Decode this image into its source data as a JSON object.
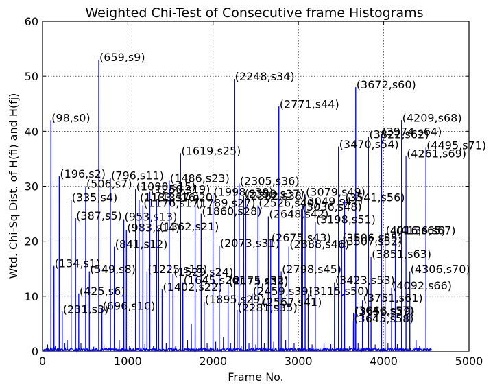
{
  "chart_data": {
    "type": "line",
    "title": "Weighted Chi-Test of Consecutive frame Histograms",
    "xlabel": "Frame No.",
    "ylabel": "Wtd. Chi-Sq Dist. of H(fi) and H(fj)",
    "xlim": [
      0,
      5000
    ],
    "ylim": [
      0,
      60
    ],
    "xticks": [
      0,
      1000,
      2000,
      3000,
      4000,
      5000
    ],
    "yticks": [
      0,
      10,
      20,
      30,
      40,
      50,
      60
    ],
    "grid": true,
    "series_color": "#0000ff",
    "n_frames": 4560,
    "peaks": [
      {
        "x": 98,
        "y": 42,
        "label": "(98,s0)"
      },
      {
        "x": 134,
        "y": 15.5,
        "label": "(134,s1)"
      },
      {
        "x": 196,
        "y": 31.8,
        "label": "(196,s2)"
      },
      {
        "x": 231,
        "y": 7.2,
        "label": "(231,s3)"
      },
      {
        "x": 335,
        "y": 27.5,
        "label": "(335,s4)"
      },
      {
        "x": 387,
        "y": 24.2,
        "label": "(387,s5)"
      },
      {
        "x": 425,
        "y": 10.5,
        "label": "(425,s6)"
      },
      {
        "x": 506,
        "y": 30,
        "label": "(506,s7)"
      },
      {
        "x": 549,
        "y": 14.5,
        "label": "(549,s8)"
      },
      {
        "x": 659,
        "y": 53,
        "label": "(659,s9)"
      },
      {
        "x": 696,
        "y": 7.8,
        "label": "(696,s10)"
      },
      {
        "x": 796,
        "y": 31.5,
        "label": "(796,s11)"
      },
      {
        "x": 841,
        "y": 19,
        "label": "(841,s12)"
      },
      {
        "x": 953,
        "y": 24,
        "label": "(953,s13)"
      },
      {
        "x": 983,
        "y": 22,
        "label": "(983,s14)"
      },
      {
        "x": 1090,
        "y": 29.5,
        "label": "(1090,s15)"
      },
      {
        "x": 1133,
        "y": 27.5,
        "label": "(1133,s16)"
      },
      {
        "x": 1176,
        "y": 26.5,
        "label": "(1176,s17)"
      },
      {
        "x": 1225,
        "y": 14.5,
        "label": "(1225,s18)"
      },
      {
        "x": 1258,
        "y": 29,
        "label": "(1258,s19)"
      },
      {
        "x": 1337,
        "y": 27.5,
        "label": "(1337,s20)"
      },
      {
        "x": 1362,
        "y": 22.2,
        "label": "(1362,s21)"
      },
      {
        "x": 1402,
        "y": 11.2,
        "label": "(1402,s22)"
      },
      {
        "x": 1486,
        "y": 31,
        "label": "(1486,s23)"
      },
      {
        "x": 1529,
        "y": 14,
        "label": "(1529,s24)"
      },
      {
        "x": 1619,
        "y": 36,
        "label": "(1619,s25)"
      },
      {
        "x": 1645,
        "y": 12.5,
        "label": "(1645,s26)"
      },
      {
        "x": 1789,
        "y": 26.5,
        "label": "(1789,s27)"
      },
      {
        "x": 1860,
        "y": 25,
        "label": "(1860,s28)"
      },
      {
        "x": 1895,
        "y": 9,
        "label": "(1895,s29)"
      },
      {
        "x": 1998,
        "y": 28.5,
        "label": "(1998,s30)"
      },
      {
        "x": 2073,
        "y": 19.2,
        "label": "(2073,s31)"
      },
      {
        "x": 2175,
        "y": 12.5,
        "label": "(2175,s32)"
      },
      {
        "x": 2175,
        "y": 12.2,
        "label": "(2175,s33)"
      },
      {
        "x": 2248,
        "y": 49.5,
        "label": "(2248,s34)"
      },
      {
        "x": 2281,
        "y": 7.5,
        "label": "(2281,s35)"
      },
      {
        "x": 2305,
        "y": 30.5,
        "label": "(2305,s36)"
      },
      {
        "x": 2359,
        "y": 28.2,
        "label": "(2359,s37)"
      },
      {
        "x": 2382,
        "y": 27.8,
        "label": "(2382,s38)"
      },
      {
        "x": 2459,
        "y": 10.5,
        "label": "(2459,s39)"
      },
      {
        "x": 2526,
        "y": 26.5,
        "label": "(2526,s40)"
      },
      {
        "x": 2567,
        "y": 8.5,
        "label": "(2567,s41)"
      },
      {
        "x": 2648,
        "y": 24.5,
        "label": "(2648,s42)"
      },
      {
        "x": 2675,
        "y": 20.2,
        "label": "(2675,s43)"
      },
      {
        "x": 2771,
        "y": 44.5,
        "label": "(2771,s44)"
      },
      {
        "x": 2798,
        "y": 14.5,
        "label": "(2798,s45)"
      },
      {
        "x": 2888,
        "y": 19,
        "label": "(2888,s46)"
      },
      {
        "x": 3049,
        "y": 26.8,
        "label": "(3049,s47)"
      },
      {
        "x": 3036,
        "y": 25.8,
        "label": "(3036,s48)"
      },
      {
        "x": 3079,
        "y": 28.5,
        "label": "(3079,s49)"
      },
      {
        "x": 3115,
        "y": 10.5,
        "label": "(3115,s50)"
      },
      {
        "x": 3198,
        "y": 23.5,
        "label": "(3198,s51)"
      },
      {
        "x": 3507,
        "y": 19.5,
        "label": "(3507,s52)"
      },
      {
        "x": 3423,
        "y": 12.5,
        "label": "(3423,s53)"
      },
      {
        "x": 3470,
        "y": 37.2,
        "label": "(3470,s54)"
      },
      {
        "x": 3506,
        "y": 20.2,
        "label": "(3506,s55)"
      },
      {
        "x": 3541,
        "y": 27.5,
        "label": "(3541,s56)"
      },
      {
        "x": 3646,
        "y": 7,
        "label": "(3646,s57)"
      },
      {
        "x": 3645,
        "y": 5.5,
        "label": "(3645,s58)"
      },
      {
        "x": 3656,
        "y": 6.8,
        "label": "(3656,s59)"
      },
      {
        "x": 3672,
        "y": 48,
        "label": "(3672,s60)"
      },
      {
        "x": 3751,
        "y": 9.2,
        "label": "(3751,s61)"
      },
      {
        "x": 3822,
        "y": 39,
        "label": "(3822,s62)"
      },
      {
        "x": 3851,
        "y": 17.2,
        "label": "(3851,s63)"
      },
      {
        "x": 3974,
        "y": 39.5,
        "label": "(3974,s64)"
      },
      {
        "x": 4016,
        "y": 21.5,
        "label": "(4016,s65)"
      },
      {
        "x": 4092,
        "y": 11.5,
        "label": "(4092,s66)"
      },
      {
        "x": 4136,
        "y": 21.5,
        "label": "(4136,s67)"
      },
      {
        "x": 4209,
        "y": 42,
        "label": "(4209,s68)"
      },
      {
        "x": 4261,
        "y": 35.5,
        "label": "(4261,s69)"
      },
      {
        "x": 4306,
        "y": 14.5,
        "label": "(4306,s70)"
      },
      {
        "x": 4495,
        "y": 37,
        "label": "(4495,s71)"
      }
    ],
    "minor_spikes": [
      {
        "x": 60,
        "y": 1.2
      },
      {
        "x": 150,
        "y": 1.0
      },
      {
        "x": 260,
        "y": 1.5
      },
      {
        "x": 290,
        "y": 2.0
      },
      {
        "x": 450,
        "y": 1.5
      },
      {
        "x": 600,
        "y": 0.8
      },
      {
        "x": 720,
        "y": 1.2
      },
      {
        "x": 900,
        "y": 2.0
      },
      {
        "x": 1020,
        "y": 1.0
      },
      {
        "x": 1200,
        "y": 1.3
      },
      {
        "x": 1300,
        "y": 1.0
      },
      {
        "x": 1450,
        "y": 1.5
      },
      {
        "x": 1560,
        "y": 1.0
      },
      {
        "x": 1700,
        "y": 2.0
      },
      {
        "x": 1745,
        "y": 5.0
      },
      {
        "x": 1930,
        "y": 1.5
      },
      {
        "x": 2030,
        "y": 1.8
      },
      {
        "x": 2120,
        "y": 2.5
      },
      {
        "x": 2205,
        "y": 1.5
      },
      {
        "x": 2330,
        "y": 1.0
      },
      {
        "x": 2420,
        "y": 1.5
      },
      {
        "x": 2500,
        "y": 1.2
      },
      {
        "x": 2600,
        "y": 1.5
      },
      {
        "x": 2710,
        "y": 1.8
      },
      {
        "x": 2850,
        "y": 2.0
      },
      {
        "x": 2950,
        "y": 1.5
      },
      {
        "x": 3160,
        "y": 1.2
      },
      {
        "x": 3300,
        "y": 1.5
      },
      {
        "x": 3380,
        "y": 1.3
      },
      {
        "x": 3600,
        "y": 1.0
      },
      {
        "x": 3700,
        "y": 1.5
      },
      {
        "x": 3900,
        "y": 1.2
      },
      {
        "x": 4050,
        "y": 1.5
      },
      {
        "x": 4160,
        "y": 1.3
      },
      {
        "x": 4380,
        "y": 2.0
      },
      {
        "x": 4420,
        "y": 1.0
      }
    ]
  }
}
